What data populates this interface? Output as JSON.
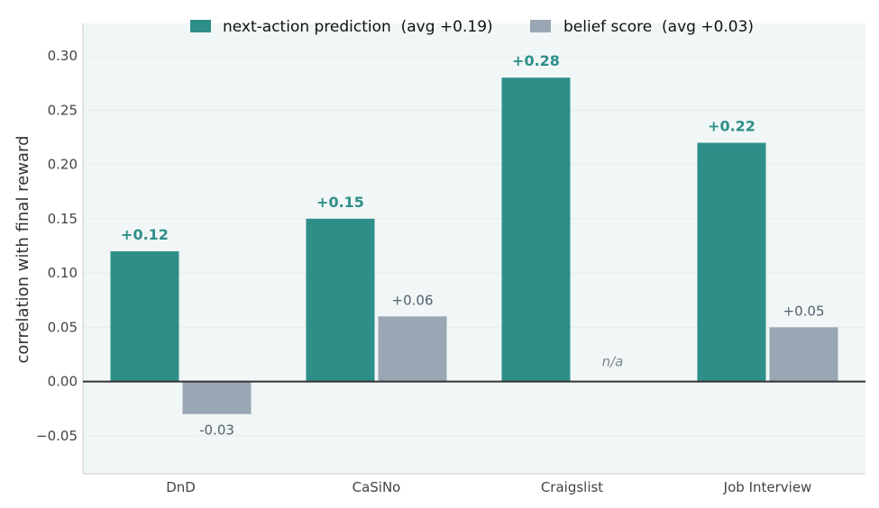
{
  "chart_data": {
    "type": "bar",
    "title": "",
    "xlabel": "",
    "ylabel": "correlation with final reward",
    "ylim": [
      -0.085,
      0.33
    ],
    "yticks": [
      -0.05,
      0.0,
      0.05,
      0.1,
      0.15,
      0.2,
      0.25,
      0.3
    ],
    "ytick_labels": [
      "−0.05",
      "0.00",
      "0.05",
      "0.10",
      "0.15",
      "0.20",
      "0.25",
      "0.30"
    ],
    "categories": [
      "DnD",
      "CaSiNo",
      "Craigslist",
      "Job Interview"
    ],
    "grid": true,
    "legend_position": "top",
    "series": [
      {
        "name": "next-action prediction  (avg +0.19)",
        "color": "#2e8f89",
        "values": [
          0.12,
          0.15,
          0.28,
          0.22
        ],
        "labels": [
          "+0.12",
          "+0.15",
          "+0.28",
          "+0.22"
        ]
      },
      {
        "name": "belief score  (avg +0.03)",
        "color": "#9aa6b3",
        "values": [
          -0.03,
          0.06,
          null,
          0.05
        ],
        "labels": [
          "-0.03",
          "+0.06",
          "n/a",
          "+0.05"
        ]
      }
    ],
    "colors": {
      "plot_background": "#f1f6f6",
      "zero_line": "#333333",
      "label_a": "#2e8f89",
      "label_b": "#55606e",
      "label_na": "#7d8794"
    }
  }
}
